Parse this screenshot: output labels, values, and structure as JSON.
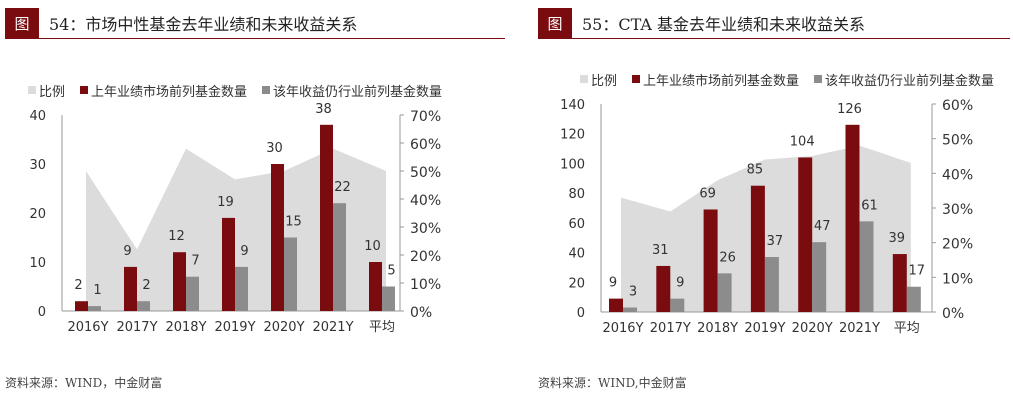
{
  "charts": [
    {
      "figure_tag": "图",
      "title": "54：市场中性基金去年业绩和未来收益关系",
      "source": "资料来源：WIND，中金财富"
    },
    {
      "figure_tag": "图",
      "title": "55：CTA 基金去年业绩和未来收益关系",
      "source": "资料来源：WIND,中金财富"
    }
  ],
  "colors": {
    "area": "#dcdcdc",
    "bar1": "#7a0c10",
    "bar2": "#8c8c8c",
    "header": "#7a0c10"
  },
  "chart_data": [
    {
      "type": "bar",
      "title": "54：市场中性基金去年业绩和未来收益关系",
      "categories": [
        "2016Y",
        "2017Y",
        "2018Y",
        "2019Y",
        "2020Y",
        "2021Y",
        "平均"
      ],
      "series": [
        {
          "name": "比例",
          "type": "area",
          "axis": "right",
          "values": [
            50,
            22,
            58,
            47,
            50,
            58,
            50
          ]
        },
        {
          "name": "上年业绩市场前列基金数量",
          "values": [
            2,
            9,
            12,
            19,
            30,
            38,
            10
          ]
        },
        {
          "name": "该年收益仍行业前列基金数量",
          "values": [
            1,
            2,
            7,
            9,
            15,
            22,
            5
          ]
        }
      ],
      "ylim": [
        0,
        40
      ],
      "yticks": [
        "0",
        "10",
        "20",
        "30",
        "40"
      ],
      "y2lim": [
        0,
        70
      ],
      "y2ticks": [
        "0%",
        "10%",
        "20%",
        "30%",
        "40%",
        "50%",
        "60%",
        "70%"
      ],
      "legend": "top"
    },
    {
      "type": "bar",
      "title": "55：CTA 基金去年业绩和未来收益关系",
      "categories": [
        "2016Y",
        "2017Y",
        "2018Y",
        "2019Y",
        "2020Y",
        "2021Y",
        "平均"
      ],
      "series": [
        {
          "name": "比例",
          "type": "area",
          "axis": "right",
          "values": [
            33,
            29,
            38,
            44,
            45,
            48,
            43
          ]
        },
        {
          "name": "上年业绩市场前列基金数量",
          "values": [
            9,
            31,
            69,
            85,
            104,
            126,
            39
          ]
        },
        {
          "name": "该年收益仍行业前列基金数量",
          "values": [
            3,
            9,
            26,
            37,
            47,
            61,
            17
          ]
        }
      ],
      "ylim": [
        0,
        140
      ],
      "yticks": [
        "0",
        "20",
        "40",
        "60",
        "80",
        "100",
        "120",
        "140"
      ],
      "y2lim": [
        0,
        60
      ],
      "y2ticks": [
        "0%",
        "10%",
        "20%",
        "30%",
        "40%",
        "50%",
        "60%"
      ],
      "legend": "top"
    }
  ]
}
